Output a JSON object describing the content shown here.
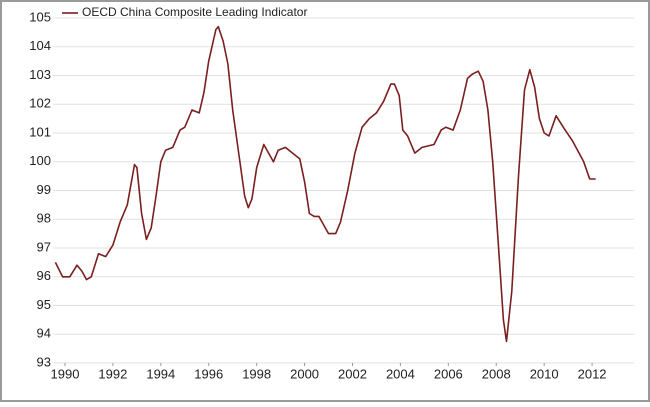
{
  "chart_data": {
    "type": "line",
    "series": [
      {
        "name": "OECD China Composite Leading Indicator",
        "color": "#7a1f1f",
        "x": [
          1989.6,
          1989.9,
          1990.2,
          1990.5,
          1990.7,
          1990.9,
          1991.1,
          1991.4,
          1991.7,
          1992.0,
          1992.3,
          1992.6,
          1992.9,
          1993.0,
          1993.2,
          1993.4,
          1993.6,
          1993.8,
          1994.0,
          1994.2,
          1994.5,
          1994.8,
          1995.0,
          1995.3,
          1995.6,
          1995.8,
          1996.0,
          1996.3,
          1996.4,
          1996.6,
          1996.8,
          1997.0,
          1997.3,
          1997.5,
          1997.65,
          1997.8,
          1998.0,
          1998.3,
          1998.5,
          1998.7,
          1998.9,
          1999.2,
          1999.5,
          1999.8,
          2000.0,
          2000.2,
          2000.4,
          2000.6,
          2000.8,
          2001.0,
          2001.3,
          2001.5,
          2001.8,
          2002.1,
          2002.4,
          2002.7,
          2003.0,
          2003.3,
          2003.5,
          2003.6,
          2003.75,
          2003.95,
          2004.1,
          2004.3,
          2004.6,
          2004.9,
          2005.4,
          2005.7,
          2005.9,
          2006.2,
          2006.5,
          2006.8,
          2007.0,
          2007.25,
          2007.45,
          2007.65,
          2007.85,
          2008.1,
          2008.3,
          2008.43,
          2008.65,
          2008.93,
          2009.18,
          2009.4,
          2009.6,
          2009.8,
          2010.0,
          2010.2,
          2010.5,
          2010.8,
          2011.2,
          2011.65,
          2011.9,
          2012.15
        ],
        "values": [
          96.5,
          96.0,
          96.0,
          96.4,
          96.2,
          95.9,
          96.0,
          96.8,
          96.7,
          97.1,
          97.9,
          98.5,
          99.9,
          99.8,
          98.2,
          97.3,
          97.7,
          98.8,
          100.0,
          100.4,
          100.5,
          101.1,
          101.2,
          101.8,
          101.7,
          102.4,
          103.5,
          104.6,
          104.7,
          104.2,
          103.4,
          101.8,
          100.0,
          98.8,
          98.4,
          98.7,
          99.8,
          100.6,
          100.3,
          100.0,
          100.4,
          100.5,
          100.3,
          100.1,
          99.3,
          98.2,
          98.1,
          98.1,
          97.8,
          97.5,
          97.5,
          97.9,
          99.0,
          100.3,
          101.2,
          101.5,
          101.7,
          102.1,
          102.5,
          102.7,
          102.7,
          102.3,
          101.1,
          100.9,
          100.3,
          100.5,
          100.6,
          101.1,
          101.2,
          101.1,
          101.8,
          102.9,
          103.05,
          103.15,
          102.8,
          101.8,
          100.0,
          97.0,
          94.5,
          93.75,
          95.5,
          99.5,
          102.5,
          103.2,
          102.6,
          101.5,
          101.0,
          100.9,
          101.6,
          101.2,
          100.7,
          100.0,
          99.4,
          99.4
        ]
      }
    ],
    "xlim": [
      1989.5,
      2014
    ],
    "xticks": [
      1990,
      1992,
      1994,
      1996,
      1998,
      2000,
      2002,
      2004,
      2006,
      2008,
      2010,
      2012
    ],
    "ylim": [
      93,
      105
    ],
    "yticks": [
      93,
      94,
      95,
      96,
      97,
      98,
      99,
      100,
      101,
      102,
      103,
      104,
      105
    ],
    "grid": true,
    "legend": "top-left"
  }
}
